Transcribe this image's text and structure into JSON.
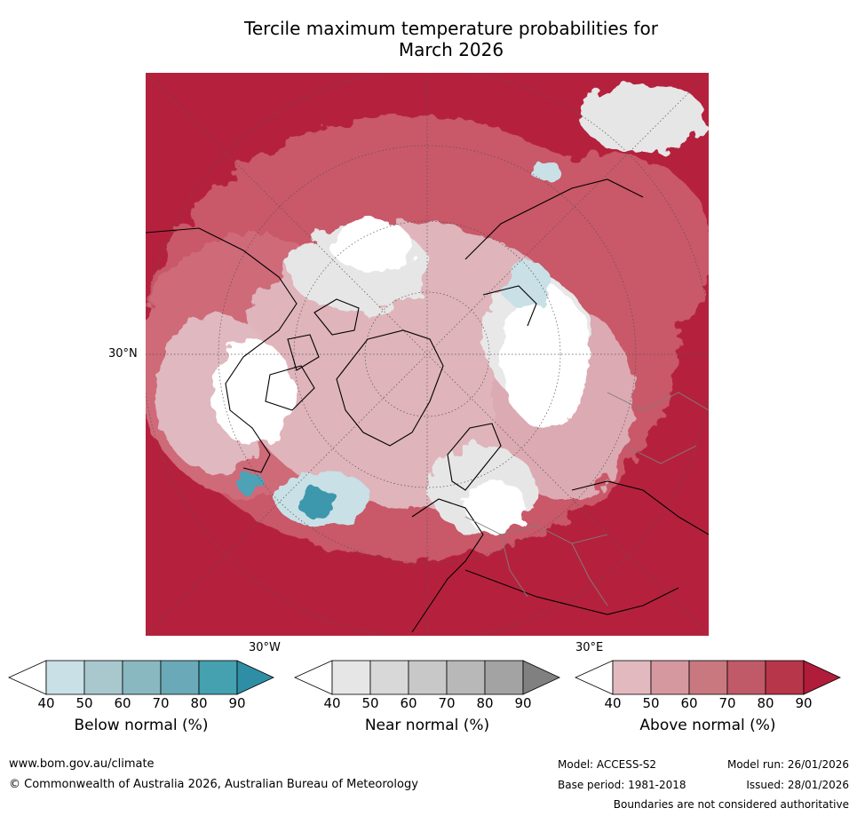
{
  "title_line1": "Tercile maximum temperature probabilities for",
  "title_line2": "March 2026",
  "map": {
    "lat_label": "30°N",
    "lon_label_left": "30°W",
    "lon_label_right": "30°E",
    "colors": {
      "above_strong": "#b5213d",
      "above_mid": "#c95868",
      "above_light": "#dfb4bb",
      "near_light": "#e6e6e6",
      "below_light": "#c8e0e6",
      "below_strong": "#2e8ea6",
      "coastline": "#000000",
      "borders": "#7f7f7f"
    }
  },
  "colorbars": [
    {
      "title": "Below normal (%)",
      "ticks": [
        "40",
        "50",
        "60",
        "70",
        "80",
        "90"
      ],
      "colors": [
        "#ffffff",
        "#c8e0e6",
        "#a8c8ce",
        "#8ab8c0",
        "#6aaab8",
        "#45a0b0",
        "#2e8ea6"
      ]
    },
    {
      "title": "Near normal (%)",
      "ticks": [
        "40",
        "50",
        "60",
        "70",
        "80",
        "90"
      ],
      "colors": [
        "#ffffff",
        "#e6e6e6",
        "#d8d8d8",
        "#c8c8c8",
        "#b8b8b8",
        "#a3a3a3",
        "#808080"
      ]
    },
    {
      "title": "Above normal (%)",
      "ticks": [
        "40",
        "50",
        "60",
        "70",
        "80",
        "90"
      ],
      "colors": [
        "#ffffff",
        "#e2b9bf",
        "#d6989f",
        "#c97880",
        "#c05a68",
        "#b8364a",
        "#b01c39"
      ]
    }
  ],
  "footer": {
    "url": "www.bom.gov.au/climate",
    "copyright": "© Commonwealth of Australia 2026, Australian Bureau of Meteorology",
    "model": "Model: ACCESS-S2",
    "model_run": "Model run: 26/01/2026",
    "base_period": "Base period: 1981-2018",
    "issued": "Issued: 28/01/2026",
    "disclaimer": "Boundaries are not considered authoritative"
  }
}
